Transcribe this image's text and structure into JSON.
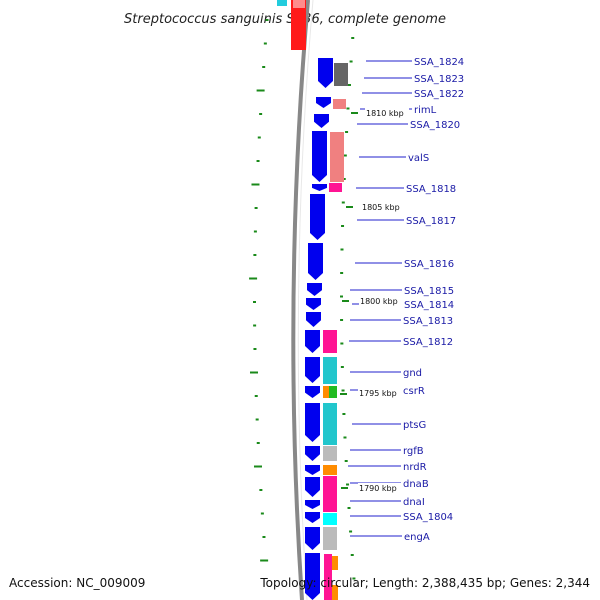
{
  "title": "Streptococcus sanguinis SK36, complete genome",
  "accession_text": "Accession: NC_009009",
  "summary_text": "Topology: circular; Length: 2,388,435 bp; Genes: 2,344",
  "kbp_markers": [
    {
      "label": "1810 kbp"
    },
    {
      "label": "1805 kbp"
    },
    {
      "label": "1800 kbp"
    },
    {
      "label": "1795 kbp"
    },
    {
      "label": "1790 kbp"
    }
  ],
  "gene_labels": [
    {
      "name": "SSA_1824"
    },
    {
      "name": "SSA_1823"
    },
    {
      "name": "SSA_1822"
    },
    {
      "name": "rimL"
    },
    {
      "name": "SSA_1820"
    },
    {
      "name": "valS"
    },
    {
      "name": "SSA_1818"
    },
    {
      "name": "SSA_1817"
    },
    {
      "name": "SSA_1816"
    },
    {
      "name": "SSA_1815"
    },
    {
      "name": "SSA_1814"
    },
    {
      "name": "SSA_1813"
    },
    {
      "name": "SSA_1812"
    },
    {
      "name": "gnd"
    },
    {
      "name": "csrR"
    },
    {
      "name": "ptsG"
    },
    {
      "name": "rgfB"
    },
    {
      "name": "nrdR"
    },
    {
      "name": "dnaB"
    },
    {
      "name": "dnaI"
    },
    {
      "name": "SSA_1804"
    },
    {
      "name": "engA"
    }
  ],
  "colors": {
    "cds_strand": "#0000ee",
    "backbone": "#888888",
    "tick": "#1a8a1a",
    "label": "#1a1aa6",
    "label_line": "#2222cc"
  }
}
